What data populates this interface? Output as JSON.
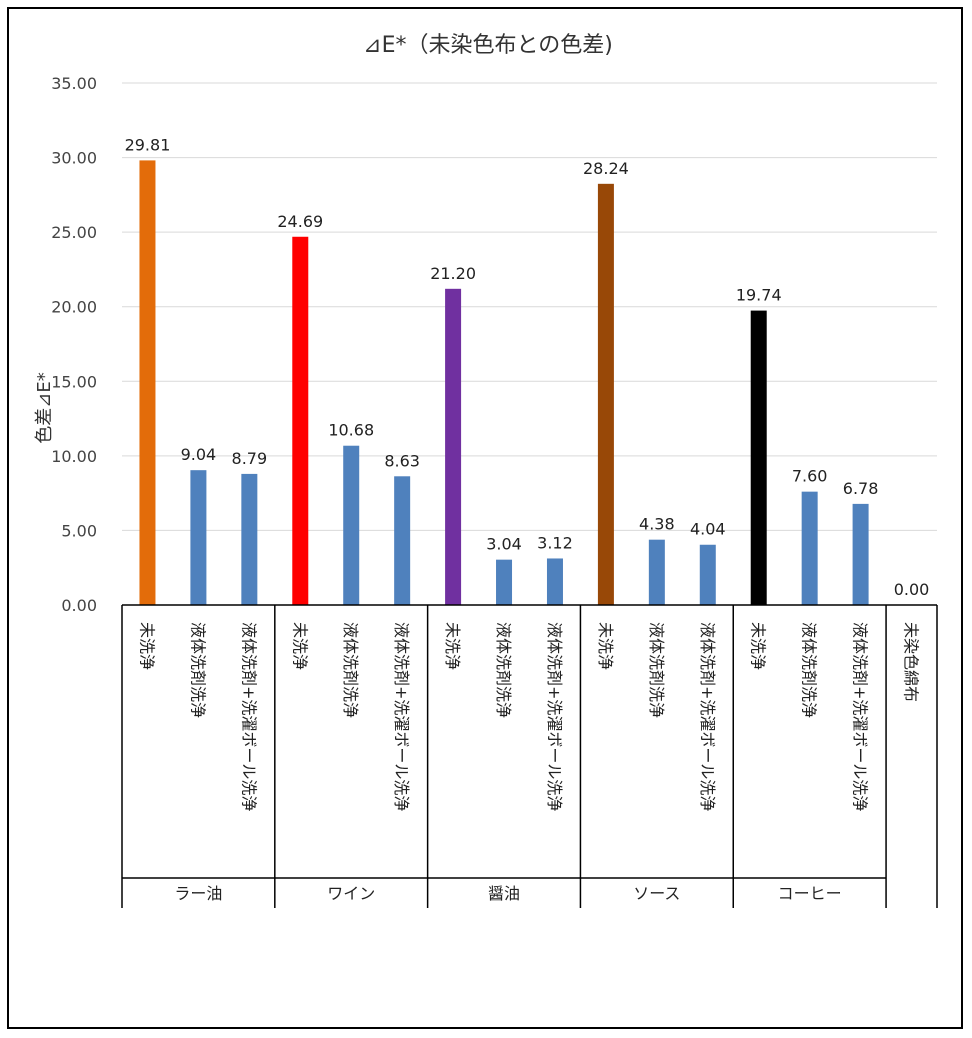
{
  "chart_data": {
    "type": "bar",
    "title": "⊿E*（未染色布との色差)",
    "ylabel": "色差⊿E*",
    "xlabel": "",
    "ylim": [
      0,
      35
    ],
    "yticks": [
      "0.00",
      "5.00",
      "10.00",
      "15.00",
      "20.00",
      "25.00",
      "30.00",
      "35.00"
    ],
    "grid": true,
    "groups": [
      {
        "name": "ラー油",
        "categories": [
          "未洗浄",
          "液体洗剤洗浄",
          "液体洗剤+洗濯ボール洗浄"
        ],
        "values": [
          29.81,
          9.04,
          8.79
        ],
        "labels": [
          "29.81",
          "9.04",
          "8.79"
        ],
        "colors": [
          "#E36C0A",
          "#4F81BD",
          "#4F81BD"
        ]
      },
      {
        "name": "ワイン",
        "categories": [
          "未洗浄",
          "液体洗剤洗浄",
          "液体洗剤+洗濯ボール洗浄"
        ],
        "values": [
          24.69,
          10.68,
          8.63
        ],
        "labels": [
          "24.69",
          "10.68",
          "8.63"
        ],
        "colors": [
          "#FF0000",
          "#4F81BD",
          "#4F81BD"
        ]
      },
      {
        "name": "醤油",
        "categories": [
          "未洗浄",
          "液体洗剤洗浄",
          "液体洗剤+洗濯ボール洗浄"
        ],
        "values": [
          21.2,
          3.04,
          3.12
        ],
        "labels": [
          "21.20",
          "3.04",
          "3.12"
        ],
        "colors": [
          "#7030A0",
          "#4F81BD",
          "#4F81BD"
        ]
      },
      {
        "name": "ソース",
        "categories": [
          "未洗浄",
          "液体洗剤洗浄",
          "液体洗剤+洗濯ボール洗浄"
        ],
        "values": [
          28.24,
          4.38,
          4.04
        ],
        "labels": [
          "28.24",
          "4.38",
          "4.04"
        ],
        "colors": [
          "#984807",
          "#4F81BD",
          "#4F81BD"
        ]
      },
      {
        "name": "コーヒー",
        "categories": [
          "未洗浄",
          "液体洗剤洗浄",
          "液体洗剤+洗濯ボール洗浄"
        ],
        "values": [
          19.74,
          7.6,
          6.78
        ],
        "labels": [
          "19.74",
          "7.60",
          "6.78"
        ],
        "colors": [
          "#000000",
          "#4F81BD",
          "#4F81BD"
        ]
      },
      {
        "name": "",
        "categories": [
          "未染色綿布"
        ],
        "values": [
          0.0
        ],
        "labels": [
          "0.00"
        ],
        "colors": [
          "#4F81BD"
        ]
      }
    ]
  }
}
